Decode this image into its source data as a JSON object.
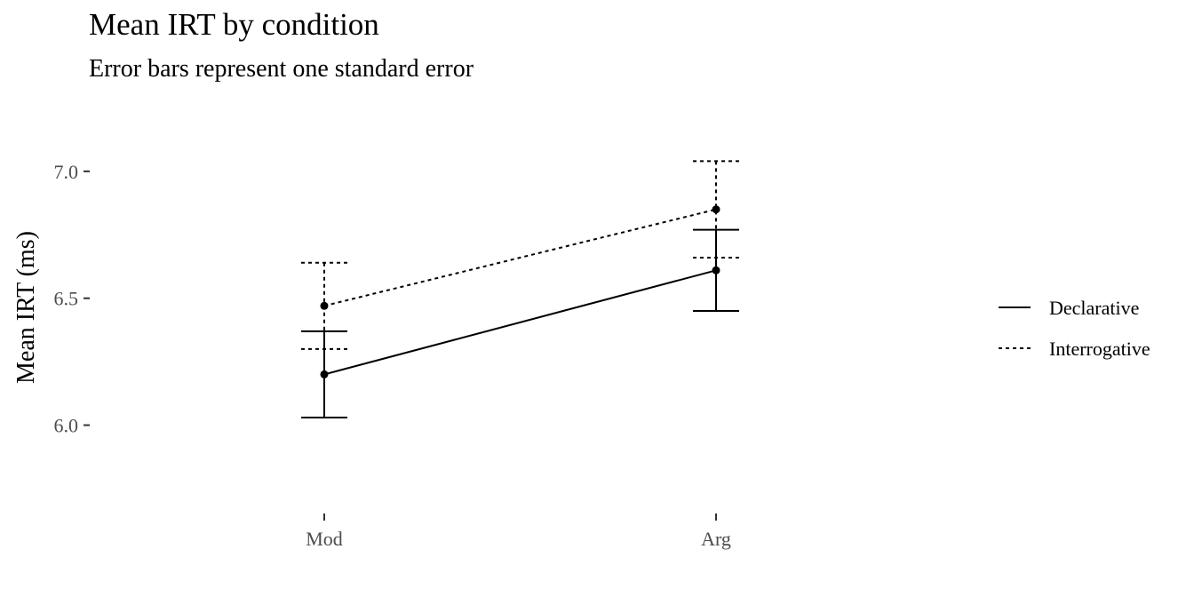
{
  "chart_data": {
    "type": "line",
    "title": "Mean IRT by condition",
    "subtitle": "Error bars represent one standard error",
    "xlabel": "",
    "ylabel": "Mean IRT (ms)",
    "categories": [
      "Mod",
      "Arg"
    ],
    "ylim": [
      5.68,
      7.15
    ],
    "yticks": [
      6.0,
      6.5,
      7.0
    ],
    "ytick_labels": [
      "6.0",
      "6.5",
      "7.0"
    ],
    "grid": false,
    "legend_position": "right",
    "series": [
      {
        "name": "Declarative",
        "linestyle": "solid",
        "values": [
          6.2,
          6.61
        ],
        "se_lower": [
          6.03,
          6.45
        ],
        "se_upper": [
          6.37,
          6.77
        ]
      },
      {
        "name": "Interrogative",
        "linestyle": "dotted",
        "values": [
          6.47,
          6.85
        ],
        "se_lower": [
          6.3,
          6.66
        ],
        "se_upper": [
          6.64,
          7.04
        ]
      }
    ],
    "colors": {
      "lines": "#000000",
      "ticks": "#4d4d4d",
      "background": "#ffffff"
    }
  }
}
